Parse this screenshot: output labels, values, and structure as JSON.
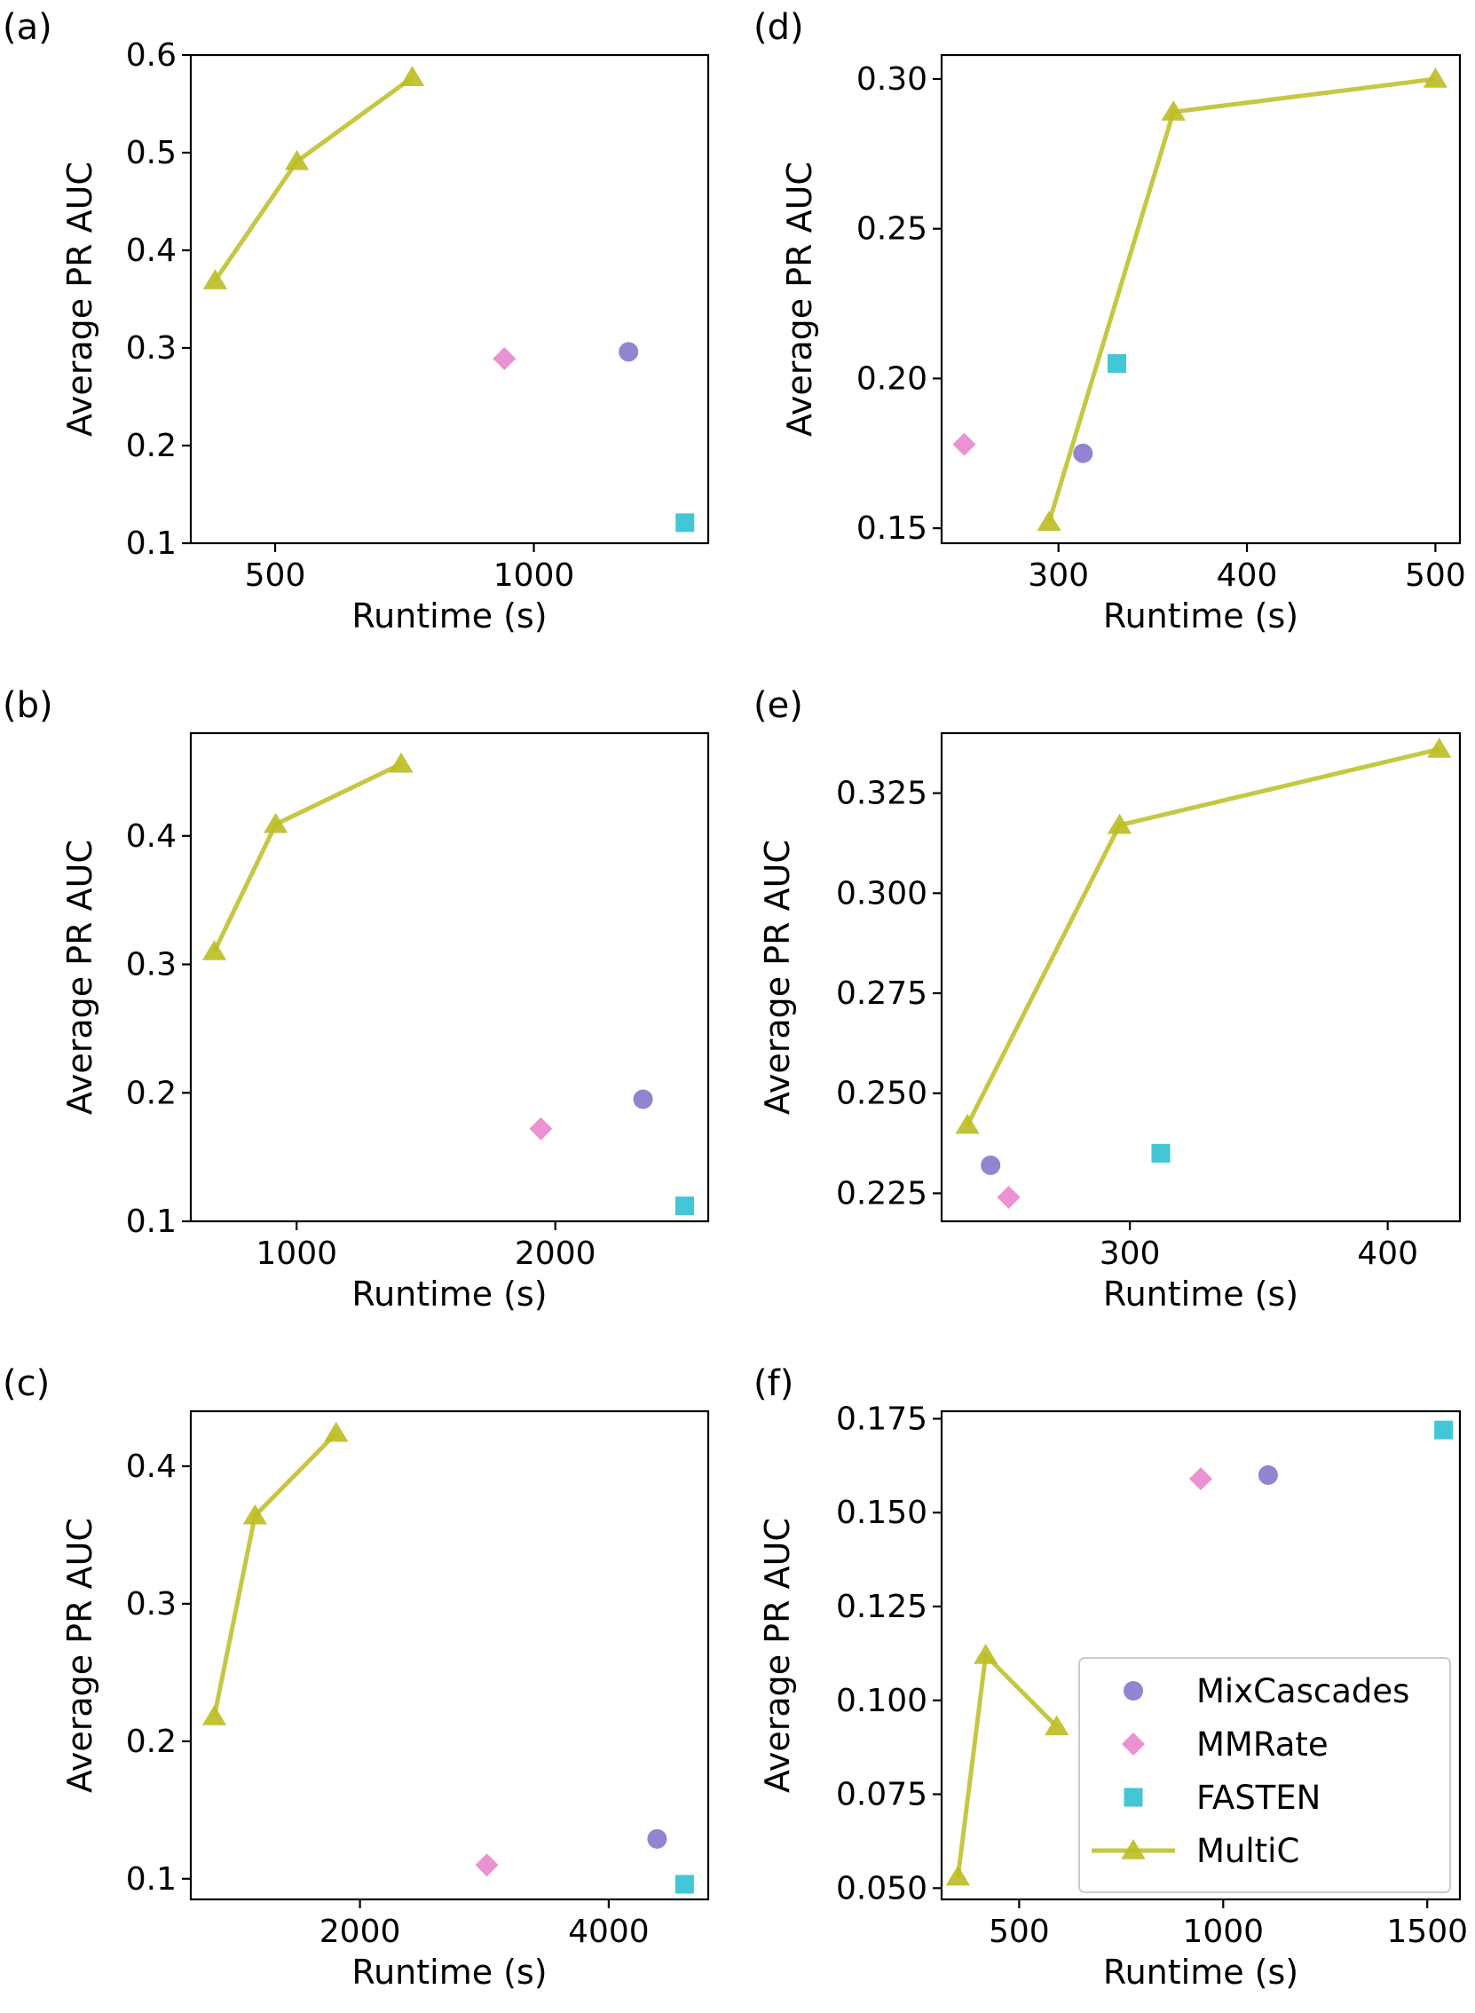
{
  "colors": {
    "MixCascades": "#7f6fc8",
    "MMRate": "#e77fca",
    "FASTEN": "#2fc0d0",
    "MultiC": "#bcbd22"
  },
  "legend": {
    "panel": "f",
    "placement": "lower-right",
    "entries": [
      {
        "series": "MixCascades",
        "label": "MixCascades",
        "marker": "circle"
      },
      {
        "series": "MMRate",
        "label": "MMRate",
        "marker": "diamond"
      },
      {
        "series": "FASTEN",
        "label": "FASTEN",
        "marker": "square"
      },
      {
        "series": "MultiC",
        "label": "MultiC",
        "marker": "triangle-line"
      }
    ]
  },
  "chart_data": [
    {
      "panel": "(a)",
      "type": "scatter",
      "xlabel": "Runtime (s)",
      "ylabel": "Average PR AUC",
      "xlim": [
        337,
        1337
      ],
      "ylim": [
        0.1,
        0.6
      ],
      "xticks": [
        500,
        1000
      ],
      "xtick_labels": [
        "500",
        "1000"
      ],
      "yticks": [
        0.1,
        0.2,
        0.3,
        0.4,
        0.5,
        0.6
      ],
      "ytick_labels": [
        "0.1",
        "0.2",
        "0.3",
        "0.4",
        "0.5",
        "0.6"
      ],
      "series": [
        {
          "name": "MixCascades",
          "marker": "circle",
          "points": [
            [
              1183,
              0.296
            ]
          ]
        },
        {
          "name": "MMRate",
          "marker": "diamond",
          "points": [
            [
              943,
              0.289
            ]
          ]
        },
        {
          "name": "FASTEN",
          "marker": "square",
          "points": [
            [
              1292,
              0.121
            ]
          ]
        },
        {
          "name": "MultiC",
          "marker": "triangle-line",
          "points": [
            [
              384,
              0.369
            ],
            [
              542,
              0.491
            ],
            [
              765,
              0.577
            ]
          ]
        }
      ]
    },
    {
      "panel": "(b)",
      "type": "scatter",
      "xlabel": "Runtime (s)",
      "ylabel": "Average PR AUC",
      "xlim": [
        591,
        2591
      ],
      "ylim": [
        0.1,
        0.48
      ],
      "xticks": [
        1000,
        2000
      ],
      "xtick_labels": [
        "1000",
        "2000"
      ],
      "yticks": [
        0.1,
        0.2,
        0.3,
        0.4
      ],
      "ytick_labels": [
        "0.1",
        "0.2",
        "0.3",
        "0.4"
      ],
      "series": [
        {
          "name": "MixCascades",
          "marker": "circle",
          "points": [
            [
              2339,
              0.195
            ]
          ]
        },
        {
          "name": "MMRate",
          "marker": "diamond",
          "points": [
            [
              1944,
              0.172
            ]
          ]
        },
        {
          "name": "FASTEN",
          "marker": "square",
          "points": [
            [
              2500,
              0.112
            ]
          ]
        },
        {
          "name": "MultiC",
          "marker": "triangle-line",
          "points": [
            [
              682,
              0.31
            ],
            [
              919,
              0.409
            ],
            [
              1404,
              0.456
            ]
          ]
        }
      ]
    },
    {
      "panel": "(c)",
      "type": "scatter",
      "xlabel": "Runtime (s)",
      "ylabel": "Average PR AUC",
      "xlim": [
        640,
        4800
      ],
      "ylim": [
        0.085,
        0.44
      ],
      "xticks": [
        2000,
        4000
      ],
      "xtick_labels": [
        "2000",
        "4000"
      ],
      "yticks": [
        0.1,
        0.2,
        0.3,
        0.4
      ],
      "ytick_labels": [
        "0.1",
        "0.2",
        "0.3",
        "0.4"
      ],
      "series": [
        {
          "name": "MixCascades",
          "marker": "circle",
          "points": [
            [
              4389,
              0.129
            ]
          ]
        },
        {
          "name": "MMRate",
          "marker": "diamond",
          "points": [
            [
              3020,
              0.11
            ]
          ]
        },
        {
          "name": "FASTEN",
          "marker": "square",
          "points": [
            [
              4610,
              0.096
            ]
          ]
        },
        {
          "name": "MultiC",
          "marker": "triangle-line",
          "points": [
            [
              829,
              0.218
            ],
            [
              1156,
              0.364
            ],
            [
              1809,
              0.424
            ]
          ]
        }
      ]
    },
    {
      "panel": "(d)",
      "type": "scatter",
      "xlabel": "Runtime (s)",
      "ylabel": "Average PR AUC",
      "xlim": [
        238,
        513
      ],
      "ylim": [
        0.145,
        0.308
      ],
      "xticks": [
        300,
        400,
        500
      ],
      "xtick_labels": [
        "300",
        "400",
        "500"
      ],
      "yticks": [
        0.15,
        0.2,
        0.25,
        0.3
      ],
      "ytick_labels": [
        "0.15",
        "0.20",
        "0.25",
        "0.30"
      ],
      "series": [
        {
          "name": "MixCascades",
          "marker": "circle",
          "points": [
            [
              313,
              0.175
            ]
          ]
        },
        {
          "name": "MMRate",
          "marker": "diamond",
          "points": [
            [
              250,
              0.178
            ]
          ]
        },
        {
          "name": "FASTEN",
          "marker": "square",
          "points": [
            [
              331,
              0.205
            ]
          ]
        },
        {
          "name": "MultiC",
          "marker": "triangle-line",
          "points": [
            [
              295,
              0.152
            ],
            [
              361,
              0.289
            ],
            [
              500,
              0.3
            ]
          ]
        }
      ]
    },
    {
      "panel": "(e)",
      "type": "scatter",
      "xlabel": "Runtime (s)",
      "ylabel": "Average PR AUC",
      "xlim": [
        227,
        428
      ],
      "ylim": [
        0.218,
        0.34
      ],
      "xticks": [
        300,
        400
      ],
      "xtick_labels": [
        "300",
        "400"
      ],
      "yticks": [
        0.225,
        0.25,
        0.275,
        0.3,
        0.325
      ],
      "ytick_labels": [
        "0.225",
        "0.250",
        "0.275",
        "0.300",
        "0.325"
      ],
      "series": [
        {
          "name": "MixCascades",
          "marker": "circle",
          "points": [
            [
              246,
              0.232
            ]
          ]
        },
        {
          "name": "MMRate",
          "marker": "diamond",
          "points": [
            [
              253,
              0.224
            ]
          ]
        },
        {
          "name": "FASTEN",
          "marker": "square",
          "points": [
            [
              312,
              0.235
            ]
          ]
        },
        {
          "name": "MultiC",
          "marker": "triangle-line",
          "points": [
            [
              237,
              0.242
            ],
            [
              296,
              0.317
            ],
            [
              420,
              0.336
            ]
          ]
        }
      ]
    },
    {
      "panel": "(f)",
      "type": "scatter",
      "xlabel": "Runtime (s)",
      "ylabel": "Average PR AUC",
      "xlim": [
        310,
        1580
      ],
      "ylim": [
        0.047,
        0.177
      ],
      "xticks": [
        500,
        1000,
        1500
      ],
      "xtick_labels": [
        "500",
        "1000",
        "1500"
      ],
      "yticks": [
        0.05,
        0.075,
        0.1,
        0.125,
        0.15,
        0.175
      ],
      "ytick_labels": [
        "0.050",
        "0.075",
        "0.100",
        "0.125",
        "0.150",
        "0.175"
      ],
      "series": [
        {
          "name": "MixCascades",
          "marker": "circle",
          "points": [
            [
              1110,
              0.16
            ]
          ]
        },
        {
          "name": "MMRate",
          "marker": "diamond",
          "points": [
            [
              945,
              0.159
            ]
          ]
        },
        {
          "name": "FASTEN",
          "marker": "square",
          "points": [
            [
              1540,
              0.172
            ]
          ]
        },
        {
          "name": "MultiC",
          "marker": "triangle-line",
          "points": [
            [
              350,
              0.053
            ],
            [
              418,
              0.112
            ],
            [
              592,
              0.093
            ]
          ]
        }
      ]
    }
  ]
}
